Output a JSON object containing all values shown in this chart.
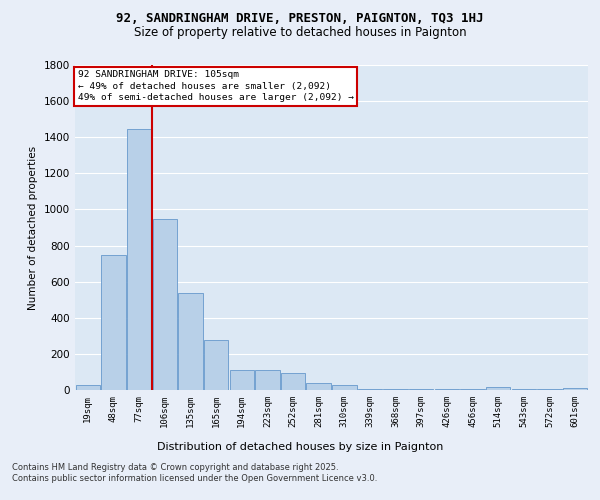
{
  "title1": "92, SANDRINGHAM DRIVE, PRESTON, PAIGNTON, TQ3 1HJ",
  "title2": "Size of property relative to detached houses in Paignton",
  "xlabel": "Distribution of detached houses by size in Paignton",
  "ylabel": "Number of detached properties",
  "bins": [
    "19sqm",
    "48sqm",
    "77sqm",
    "106sqm",
    "135sqm",
    "165sqm",
    "194sqm",
    "223sqm",
    "252sqm",
    "281sqm",
    "310sqm",
    "339sqm",
    "368sqm",
    "397sqm",
    "426sqm",
    "456sqm",
    "514sqm",
    "543sqm",
    "572sqm",
    "601sqm"
  ],
  "values": [
    25,
    748,
    1445,
    948,
    535,
    275,
    112,
    112,
    95,
    40,
    25,
    5,
    5,
    5,
    5,
    5,
    15,
    5,
    5,
    10
  ],
  "bar_color": "#b8d0e8",
  "bar_edge_color": "#6699cc",
  "red_line_bin_index": 3,
  "annotation_title": "92 SANDRINGHAM DRIVE: 105sqm",
  "annotation_line1": "← 49% of detached houses are smaller (2,092)",
  "annotation_line2": "49% of semi-detached houses are larger (2,092) →",
  "footer1": "Contains HM Land Registry data © Crown copyright and database right 2025.",
  "footer2": "Contains public sector information licensed under the Open Government Licence v3.0.",
  "bg_color": "#e8eef8",
  "plot_bg_color": "#dce8f4",
  "ylim": [
    0,
    1800
  ],
  "yticks": [
    0,
    200,
    400,
    600,
    800,
    1000,
    1200,
    1400,
    1600,
    1800
  ]
}
